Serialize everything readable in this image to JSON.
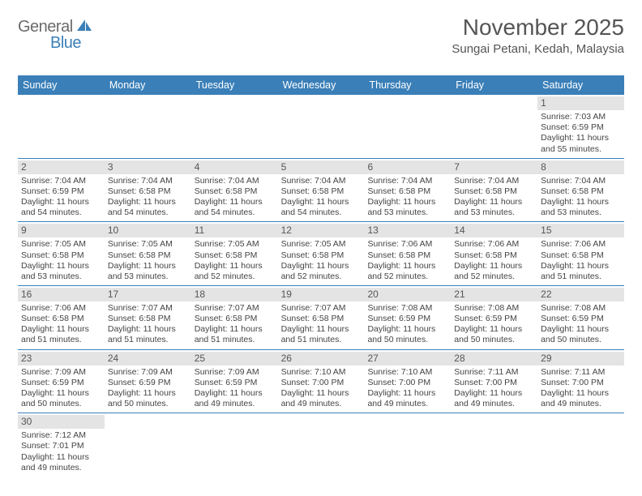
{
  "logo": {
    "text1": "General",
    "text2": "Blue"
  },
  "title": "November 2025",
  "location": "Sungai Petani, Kedah, Malaysia",
  "colors": {
    "header_bg": "#3a7fb8",
    "header_text": "#ffffff",
    "daynum_bg": "#e4e4e4",
    "rule": "#3a7fb8",
    "logo_gray": "#6b6b6b",
    "logo_blue": "#3a7fb8"
  },
  "fonts": {
    "title_pt": 28,
    "location_pt": 15,
    "dow_pt": 12.5,
    "cell_pt": 10.5,
    "daynum_pt": 12
  },
  "days_of_week": [
    "Sunday",
    "Monday",
    "Tuesday",
    "Wednesday",
    "Thursday",
    "Friday",
    "Saturday"
  ],
  "weeks": [
    [
      {
        "empty": true
      },
      {
        "empty": true
      },
      {
        "empty": true
      },
      {
        "empty": true
      },
      {
        "empty": true
      },
      {
        "empty": true
      },
      {
        "day": "1",
        "sunrise": "Sunrise: 7:03 AM",
        "sunset": "Sunset: 6:59 PM",
        "daylight1": "Daylight: 11 hours",
        "daylight2": "and 55 minutes."
      }
    ],
    [
      {
        "day": "2",
        "sunrise": "Sunrise: 7:04 AM",
        "sunset": "Sunset: 6:59 PM",
        "daylight1": "Daylight: 11 hours",
        "daylight2": "and 54 minutes."
      },
      {
        "day": "3",
        "sunrise": "Sunrise: 7:04 AM",
        "sunset": "Sunset: 6:58 PM",
        "daylight1": "Daylight: 11 hours",
        "daylight2": "and 54 minutes."
      },
      {
        "day": "4",
        "sunrise": "Sunrise: 7:04 AM",
        "sunset": "Sunset: 6:58 PM",
        "daylight1": "Daylight: 11 hours",
        "daylight2": "and 54 minutes."
      },
      {
        "day": "5",
        "sunrise": "Sunrise: 7:04 AM",
        "sunset": "Sunset: 6:58 PM",
        "daylight1": "Daylight: 11 hours",
        "daylight2": "and 54 minutes."
      },
      {
        "day": "6",
        "sunrise": "Sunrise: 7:04 AM",
        "sunset": "Sunset: 6:58 PM",
        "daylight1": "Daylight: 11 hours",
        "daylight2": "and 53 minutes."
      },
      {
        "day": "7",
        "sunrise": "Sunrise: 7:04 AM",
        "sunset": "Sunset: 6:58 PM",
        "daylight1": "Daylight: 11 hours",
        "daylight2": "and 53 minutes."
      },
      {
        "day": "8",
        "sunrise": "Sunrise: 7:04 AM",
        "sunset": "Sunset: 6:58 PM",
        "daylight1": "Daylight: 11 hours",
        "daylight2": "and 53 minutes."
      }
    ],
    [
      {
        "day": "9",
        "sunrise": "Sunrise: 7:05 AM",
        "sunset": "Sunset: 6:58 PM",
        "daylight1": "Daylight: 11 hours",
        "daylight2": "and 53 minutes."
      },
      {
        "day": "10",
        "sunrise": "Sunrise: 7:05 AM",
        "sunset": "Sunset: 6:58 PM",
        "daylight1": "Daylight: 11 hours",
        "daylight2": "and 53 minutes."
      },
      {
        "day": "11",
        "sunrise": "Sunrise: 7:05 AM",
        "sunset": "Sunset: 6:58 PM",
        "daylight1": "Daylight: 11 hours",
        "daylight2": "and 52 minutes."
      },
      {
        "day": "12",
        "sunrise": "Sunrise: 7:05 AM",
        "sunset": "Sunset: 6:58 PM",
        "daylight1": "Daylight: 11 hours",
        "daylight2": "and 52 minutes."
      },
      {
        "day": "13",
        "sunrise": "Sunrise: 7:06 AM",
        "sunset": "Sunset: 6:58 PM",
        "daylight1": "Daylight: 11 hours",
        "daylight2": "and 52 minutes."
      },
      {
        "day": "14",
        "sunrise": "Sunrise: 7:06 AM",
        "sunset": "Sunset: 6:58 PM",
        "daylight1": "Daylight: 11 hours",
        "daylight2": "and 52 minutes."
      },
      {
        "day": "15",
        "sunrise": "Sunrise: 7:06 AM",
        "sunset": "Sunset: 6:58 PM",
        "daylight1": "Daylight: 11 hours",
        "daylight2": "and 51 minutes."
      }
    ],
    [
      {
        "day": "16",
        "sunrise": "Sunrise: 7:06 AM",
        "sunset": "Sunset: 6:58 PM",
        "daylight1": "Daylight: 11 hours",
        "daylight2": "and 51 minutes."
      },
      {
        "day": "17",
        "sunrise": "Sunrise: 7:07 AM",
        "sunset": "Sunset: 6:58 PM",
        "daylight1": "Daylight: 11 hours",
        "daylight2": "and 51 minutes."
      },
      {
        "day": "18",
        "sunrise": "Sunrise: 7:07 AM",
        "sunset": "Sunset: 6:58 PM",
        "daylight1": "Daylight: 11 hours",
        "daylight2": "and 51 minutes."
      },
      {
        "day": "19",
        "sunrise": "Sunrise: 7:07 AM",
        "sunset": "Sunset: 6:58 PM",
        "daylight1": "Daylight: 11 hours",
        "daylight2": "and 51 minutes."
      },
      {
        "day": "20",
        "sunrise": "Sunrise: 7:08 AM",
        "sunset": "Sunset: 6:59 PM",
        "daylight1": "Daylight: 11 hours",
        "daylight2": "and 50 minutes."
      },
      {
        "day": "21",
        "sunrise": "Sunrise: 7:08 AM",
        "sunset": "Sunset: 6:59 PM",
        "daylight1": "Daylight: 11 hours",
        "daylight2": "and 50 minutes."
      },
      {
        "day": "22",
        "sunrise": "Sunrise: 7:08 AM",
        "sunset": "Sunset: 6:59 PM",
        "daylight1": "Daylight: 11 hours",
        "daylight2": "and 50 minutes."
      }
    ],
    [
      {
        "day": "23",
        "sunrise": "Sunrise: 7:09 AM",
        "sunset": "Sunset: 6:59 PM",
        "daylight1": "Daylight: 11 hours",
        "daylight2": "and 50 minutes."
      },
      {
        "day": "24",
        "sunrise": "Sunrise: 7:09 AM",
        "sunset": "Sunset: 6:59 PM",
        "daylight1": "Daylight: 11 hours",
        "daylight2": "and 50 minutes."
      },
      {
        "day": "25",
        "sunrise": "Sunrise: 7:09 AM",
        "sunset": "Sunset: 6:59 PM",
        "daylight1": "Daylight: 11 hours",
        "daylight2": "and 49 minutes."
      },
      {
        "day": "26",
        "sunrise": "Sunrise: 7:10 AM",
        "sunset": "Sunset: 7:00 PM",
        "daylight1": "Daylight: 11 hours",
        "daylight2": "and 49 minutes."
      },
      {
        "day": "27",
        "sunrise": "Sunrise: 7:10 AM",
        "sunset": "Sunset: 7:00 PM",
        "daylight1": "Daylight: 11 hours",
        "daylight2": "and 49 minutes."
      },
      {
        "day": "28",
        "sunrise": "Sunrise: 7:11 AM",
        "sunset": "Sunset: 7:00 PM",
        "daylight1": "Daylight: 11 hours",
        "daylight2": "and 49 minutes."
      },
      {
        "day": "29",
        "sunrise": "Sunrise: 7:11 AM",
        "sunset": "Sunset: 7:00 PM",
        "daylight1": "Daylight: 11 hours",
        "daylight2": "and 49 minutes."
      }
    ],
    [
      {
        "day": "30",
        "sunrise": "Sunrise: 7:12 AM",
        "sunset": "Sunset: 7:01 PM",
        "daylight1": "Daylight: 11 hours",
        "daylight2": "and 49 minutes."
      },
      {
        "empty": true
      },
      {
        "empty": true
      },
      {
        "empty": true
      },
      {
        "empty": true
      },
      {
        "empty": true
      },
      {
        "empty": true
      }
    ]
  ]
}
